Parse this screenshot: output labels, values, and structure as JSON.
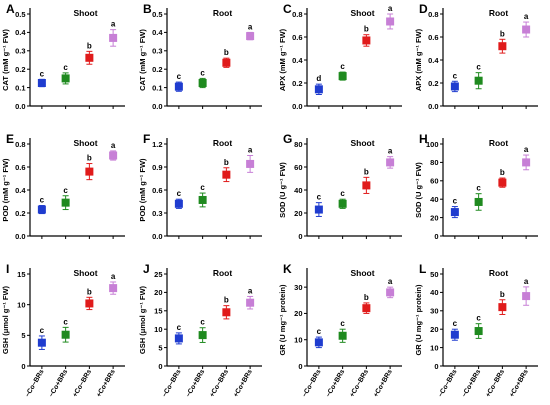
{
  "colors": [
    "#1f3ccf",
    "#1f8a1f",
    "#e01b1b",
    "#c77fd6"
  ],
  "chart_data": [
    {
      "type": "scatter",
      "panel_letter": "A",
      "title": "Shoot",
      "ylabel": "CAT (mM g⁻¹ FW)",
      "ylim": [
        0,
        0.5
      ],
      "yticks": [
        "0.0",
        "0.1",
        "0.2",
        "0.3",
        "0.4",
        "0.5"
      ],
      "categories": [
        "−Co−BRs",
        "−Co+BRs",
        "+Co−BRs",
        "+Co+BRs"
      ],
      "values": [
        0.125,
        0.15,
        0.262,
        0.37
      ],
      "errors": [
        0.02,
        0.03,
        0.035,
        0.045
      ],
      "letters": [
        "c",
        "c",
        "b",
        "a"
      ],
      "show_xticklabels": false
    },
    {
      "type": "scatter",
      "panel_letter": "B",
      "title": "Root",
      "ylabel": "CAT (mM g⁻¹ FW)",
      "ylim": [
        0,
        0.5
      ],
      "yticks": [
        "0.0",
        "0.1",
        "0.2",
        "0.3",
        "0.4",
        "0.5"
      ],
      "categories": [
        "−Co−BRs",
        "−Co+BRs",
        "+Co−BRs",
        "+Co+BRs"
      ],
      "values": [
        0.105,
        0.125,
        0.235,
        0.38
      ],
      "errors": [
        0.025,
        0.025,
        0.025,
        0.02
      ],
      "letters": [
        "c",
        "c",
        "b",
        "a"
      ],
      "show_xticklabels": false
    },
    {
      "type": "scatter",
      "panel_letter": "C",
      "title": "Shoot",
      "ylabel": "APX (mM g⁻¹ FW)",
      "ylim": [
        0,
        0.8
      ],
      "yticks": [
        "0.0",
        "0.2",
        "0.4",
        "0.6",
        "0.8"
      ],
      "categories": [
        "−Co−BRs",
        "−Co+BRs",
        "+Co−BRs",
        "+Co+BRs"
      ],
      "values": [
        0.145,
        0.26,
        0.57,
        0.735
      ],
      "errors": [
        0.045,
        0.035,
        0.05,
        0.065
      ],
      "letters": [
        "d",
        "c",
        "b",
        "a"
      ],
      "show_xticklabels": false
    },
    {
      "type": "scatter",
      "panel_letter": "D",
      "title": "Root",
      "ylabel": "APX (mM g⁻¹ FW)",
      "ylim": [
        0,
        0.8
      ],
      "yticks": [
        "0.0",
        "0.2",
        "0.4",
        "0.6",
        "0.8"
      ],
      "categories": [
        "−Co−BRs",
        "−Co+BRs",
        "+Co−BRs",
        "+Co+BRs"
      ],
      "values": [
        0.17,
        0.22,
        0.52,
        0.665
      ],
      "errors": [
        0.045,
        0.07,
        0.06,
        0.065
      ],
      "letters": [
        "c",
        "c",
        "b",
        "a"
      ],
      "show_xticklabels": false
    },
    {
      "type": "scatter",
      "panel_letter": "E",
      "title": "Shoot",
      "ylabel": "POD (mM g⁻¹ FW)",
      "ylim": [
        0,
        0.8
      ],
      "yticks": [
        "0.0",
        "0.2",
        "0.4",
        "0.6",
        "0.8"
      ],
      "categories": [
        "−Co−BRs",
        "−Co+BRs",
        "+Co−BRs",
        "+Co+BRs"
      ],
      "values": [
        0.23,
        0.29,
        0.56,
        0.7
      ],
      "errors": [
        0.035,
        0.06,
        0.07,
        0.04
      ],
      "letters": [
        "c",
        "c",
        "b",
        "a"
      ],
      "show_xticklabels": false
    },
    {
      "type": "scatter",
      "panel_letter": "F",
      "title": "Root",
      "ylabel": "POD (mM g⁻¹ FW)",
      "ylim": [
        0,
        1.2
      ],
      "yticks": [
        "0.0",
        "0.3",
        "0.6",
        "0.9",
        "1.2"
      ],
      "categories": [
        "−Co−BRs",
        "−Co+BRs",
        "+Co−BRs",
        "+Co+BRs"
      ],
      "values": [
        0.42,
        0.47,
        0.8,
        0.94
      ],
      "errors": [
        0.06,
        0.09,
        0.09,
        0.11
      ],
      "letters": [
        "c",
        "c",
        "b",
        "a"
      ],
      "show_xticklabels": false
    },
    {
      "type": "scatter",
      "panel_letter": "G",
      "title": "Shoot",
      "ylabel": "SOD (U g⁻¹ FW)",
      "ylim": [
        0,
        80
      ],
      "yticks": [
        "0",
        "20",
        "40",
        "60",
        "80"
      ],
      "categories": [
        "−Co−BRs",
        "−Co+BRs",
        "+Co−BRs",
        "+Co+BRs"
      ],
      "values": [
        23,
        28,
        44,
        64
      ],
      "errors": [
        6,
        4,
        7,
        5
      ],
      "letters": [
        "c",
        "c",
        "b",
        "a"
      ],
      "show_xticklabels": false
    },
    {
      "type": "scatter",
      "panel_letter": "H",
      "title": "Root",
      "ylabel": "SOD (U g⁻¹ FW)",
      "ylim": [
        0,
        100
      ],
      "yticks": [
        "0",
        "20",
        "40",
        "60",
        "80",
        "100"
      ],
      "categories": [
        "−Co−BRs",
        "−Co+BRs",
        "+Co−BRs",
        "+Co+BRs"
      ],
      "values": [
        26,
        37,
        58,
        80
      ],
      "errors": [
        6,
        9,
        5,
        8
      ],
      "letters": [
        "c",
        "c",
        "b",
        "a"
      ],
      "show_xticklabels": false
    },
    {
      "type": "scatter",
      "panel_letter": "I",
      "title": "Shoot",
      "ylabel": "GSH (μmol g⁻¹ FW)",
      "ylim": [
        0,
        15
      ],
      "yticks": [
        "0",
        "5",
        "10",
        "15"
      ],
      "categories": [
        "−Co−BRs",
        "−Co+BRs",
        "+Co−BRs",
        "+Co+BRs"
      ],
      "values": [
        3.8,
        5.1,
        10.2,
        12.7
      ],
      "errors": [
        1.1,
        1.2,
        1.0,
        1.0
      ],
      "letters": [
        "c",
        "c",
        "b",
        "a"
      ],
      "show_xticklabels": true
    },
    {
      "type": "scatter",
      "panel_letter": "J",
      "title": "Root",
      "ylabel": "GSH (μmol g⁻¹ FW)",
      "ylim": [
        0,
        25
      ],
      "yticks": [
        "0",
        "5",
        "10",
        "15",
        "20",
        "25"
      ],
      "categories": [
        "−Co−BRs",
        "−Co+BRs",
        "+Co−BRs",
        "+Co+BRs"
      ],
      "values": [
        7.5,
        8.4,
        14.6,
        17.2
      ],
      "errors": [
        1.5,
        2.0,
        1.8,
        1.7
      ],
      "letters": [
        "c",
        "c",
        "b",
        "a"
      ],
      "show_xticklabels": true
    },
    {
      "type": "scatter",
      "panel_letter": "K",
      "title": "Shoot",
      "ylabel": "GR (U mg⁻¹ protein)",
      "ylim": [
        0,
        35
      ],
      "yticks": [
        "0",
        "10",
        "20",
        "30"
      ],
      "categories": [
        "−Co−BRs",
        "−Co+BRs",
        "+Co−BRs",
        "+Co+BRs"
      ],
      "values": [
        9,
        11.5,
        22,
        28
      ],
      "errors": [
        2,
        2.5,
        2.0,
        2.0
      ],
      "letters": [
        "c",
        "c",
        "b",
        "a"
      ],
      "show_xticklabels": true
    },
    {
      "type": "scatter",
      "panel_letter": "L",
      "title": "Root",
      "ylabel": "GR (U mg⁻¹ protein)",
      "ylim": [
        0,
        50
      ],
      "yticks": [
        "0",
        "10",
        "20",
        "30",
        "40",
        "50"
      ],
      "categories": [
        "−Co−BRs",
        "−Co+BRs",
        "+Co−BRs",
        "+Co+BRs"
      ],
      "values": [
        17,
        19,
        32,
        38
      ],
      "errors": [
        3,
        4,
        4,
        5
      ],
      "letters": [
        "c",
        "c",
        "b",
        "a"
      ],
      "show_xticklabels": true
    }
  ]
}
